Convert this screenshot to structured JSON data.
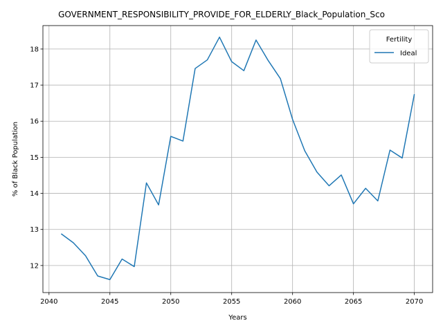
{
  "chart_data": {
    "type": "line",
    "title": "GOVERNMENT_RESPONSIBILITY_PROVIDE_FOR_ELDERLY_Black_Population_Sco",
    "xlabel": "Years",
    "ylabel": "% of Black Population",
    "xlim": [
      2039.5,
      2071.5
    ],
    "ylim": [
      11.25,
      18.65
    ],
    "xticks": [
      2040,
      2045,
      2050,
      2055,
      2060,
      2065,
      2070
    ],
    "yticks": [
      12,
      13,
      14,
      15,
      16,
      17,
      18
    ],
    "grid": true,
    "legend": {
      "title": "Fertility",
      "placement": "top-right"
    },
    "series": [
      {
        "name": "Ideal",
        "color": "#1f77b4",
        "x": [
          2041,
          2042,
          2043,
          2044,
          2045,
          2046,
          2047,
          2048,
          2049,
          2050,
          2051,
          2052,
          2053,
          2054,
          2055,
          2056,
          2057,
          2058,
          2059,
          2060,
          2061,
          2062,
          2063,
          2064,
          2065,
          2066,
          2067,
          2068,
          2069,
          2070
        ],
        "y": [
          12.88,
          12.63,
          12.27,
          11.71,
          11.61,
          12.18,
          11.97,
          14.29,
          13.68,
          15.58,
          15.45,
          17.46,
          17.7,
          18.33,
          17.65,
          17.4,
          18.25,
          17.68,
          17.18,
          16.05,
          15.18,
          14.59,
          14.21,
          14.51,
          13.71,
          14.14,
          13.79,
          15.2,
          14.98,
          16.75
        ]
      }
    ]
  }
}
